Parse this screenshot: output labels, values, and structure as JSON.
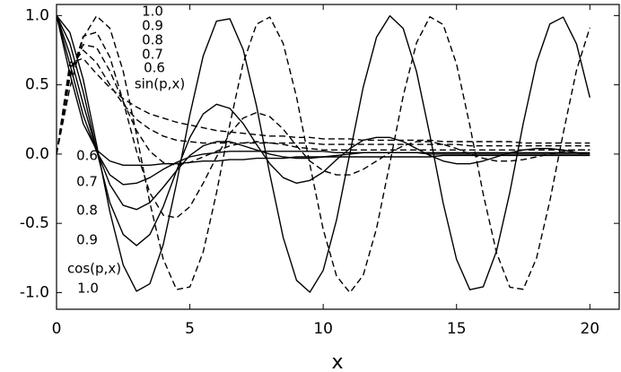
{
  "chart_data": {
    "type": "line",
    "xlabel": "x",
    "annotations": [
      "sin(p,x)",
      "cos(p,x)"
    ],
    "xlim": [
      0,
      21.1
    ],
    "ylim": [
      -1.12,
      1.08
    ],
    "xticks": [
      0,
      5,
      10,
      15,
      20
    ],
    "yticks": [
      {
        "value": -1,
        "label": "-1.0"
      },
      -0.5,
      {
        "value": 0,
        "label": "0.0"
      },
      0.5,
      {
        "value": 1,
        "label": "1.0"
      }
    ],
    "grid": false,
    "x": [
      0,
      0.5,
      1,
      1.5,
      2,
      2.5,
      3,
      3.5,
      4,
      4.5,
      5,
      5.5,
      6,
      6.5,
      7,
      7.5,
      8,
      8.5,
      9,
      9.5,
      10,
      10.5,
      11,
      11.5,
      12,
      12.5,
      13,
      13.5,
      14,
      14.5,
      15,
      15.5,
      16,
      16.5,
      17,
      17.5,
      18,
      18.5,
      19,
      19.5,
      20
    ],
    "series": [
      {
        "name": "1.0",
        "color": "#000000",
        "style": "solid",
        "values": [
          1,
          0.878,
          0.54,
          0.071,
          -0.416,
          -0.801,
          -0.99,
          -0.936,
          -0.654,
          -0.211,
          0.284,
          0.709,
          0.96,
          0.977,
          0.754,
          0.347,
          -0.146,
          -0.602,
          -0.911,
          -0.997,
          -0.839,
          -0.476,
          0.004,
          0.483,
          0.844,
          0.998,
          0.907,
          0.595,
          0.137,
          -0.355,
          -0.76,
          -0.979,
          -0.958,
          -0.7,
          -0.275,
          0.22,
          0.66,
          0.939,
          0.989,
          0.795,
          0.408
        ]
      },
      {
        "name": "0.9",
        "color": "#000000",
        "style": "solid",
        "values": [
          1,
          0.8,
          0.45,
          0.03,
          -0.35,
          -0.58,
          -0.66,
          -0.58,
          -0.38,
          -0.12,
          0.12,
          0.29,
          0.36,
          0.33,
          0.22,
          0.07,
          -0.07,
          -0.17,
          -0.21,
          -0.19,
          -0.13,
          -0.04,
          0.04,
          0.1,
          0.12,
          0.12,
          0.09,
          0.04,
          -0.01,
          -0.05,
          -0.07,
          -0.07,
          -0.05,
          -0.02,
          0.01,
          0.03,
          0.04,
          0.04,
          0.03,
          0.01,
          0.0
        ]
      },
      {
        "name": "0.8",
        "color": "#000000",
        "style": "solid",
        "values": [
          1,
          0.72,
          0.36,
          0.03,
          -0.22,
          -0.37,
          -0.4,
          -0.35,
          -0.24,
          -0.12,
          -0.01,
          0.06,
          0.09,
          0.09,
          0.06,
          0.03,
          0.0,
          -0.02,
          -0.03,
          -0.03,
          -0.02,
          -0.01,
          0.0,
          0.01,
          0.01,
          0.01,
          0.01,
          0.01,
          0.0,
          0.0,
          0.0,
          0.0,
          0.0,
          0.0,
          0.0,
          0.0,
          0.0,
          0.0,
          0.0,
          0.0,
          0.0
        ]
      },
      {
        "name": "0.7",
        "color": "#000000",
        "style": "solid",
        "values": [
          1,
          0.65,
          0.28,
          0.02,
          -0.15,
          -0.22,
          -0.21,
          -0.17,
          -0.11,
          -0.06,
          -0.02,
          0.0,
          0.01,
          0.02,
          0.02,
          0.02,
          0.02,
          0.02,
          0.02,
          0.02,
          0.02,
          0.01,
          0.01,
          0.01,
          0.01,
          0.01,
          0.01,
          0.01,
          0.01,
          0.01,
          0.01,
          0.01,
          0.01,
          0.01,
          0.01,
          0.01,
          0.01,
          0.01,
          0.01,
          0.01,
          0.01
        ]
      },
      {
        "name": "0.6",
        "color": "#000000",
        "style": "solid",
        "values": [
          1,
          0.58,
          0.22,
          0.03,
          -0.05,
          -0.08,
          -0.08,
          -0.08,
          -0.07,
          -0.07,
          -0.06,
          -0.05,
          -0.05,
          -0.04,
          -0.04,
          -0.03,
          -0.03,
          -0.03,
          -0.02,
          -0.02,
          -0.02,
          -0.02,
          -0.02,
          -0.02,
          -0.02,
          -0.02,
          -0.02,
          -0.02,
          -0.02,
          -0.01,
          -0.01,
          -0.01,
          -0.01,
          -0.01,
          -0.01,
          -0.01,
          -0.01,
          -0.01,
          -0.01,
          -0.01,
          -0.01
        ]
      },
      {
        "name": "1.0",
        "color": "#000000",
        "style": "dashed",
        "values": [
          0,
          0.479,
          0.841,
          0.997,
          0.909,
          0.598,
          0.141,
          -0.351,
          -0.757,
          -0.978,
          -0.959,
          -0.706,
          -0.279,
          0.215,
          0.657,
          0.938,
          0.989,
          0.798,
          0.412,
          -0.075,
          -0.544,
          -0.88,
          -1.0,
          -0.875,
          -0.537,
          -0.066,
          0.42,
          0.804,
          0.991,
          0.935,
          0.65,
          0.206,
          -0.288,
          -0.712,
          -0.961,
          -0.976,
          -0.751,
          -0.338,
          0.15,
          0.606,
          0.913
        ]
      },
      {
        "name": "0.9",
        "color": "#000000",
        "style": "dashed",
        "values": [
          0,
          0.55,
          0.85,
          0.88,
          0.7,
          0.38,
          0.02,
          -0.28,
          -0.44,
          -0.46,
          -0.38,
          -0.21,
          -0.02,
          0.15,
          0.26,
          0.3,
          0.27,
          0.18,
          0.06,
          -0.05,
          -0.12,
          -0.15,
          -0.15,
          -0.11,
          -0.05,
          0.01,
          0.06,
          0.09,
          0.09,
          0.07,
          0.04,
          0.0,
          -0.03,
          -0.05,
          -0.05,
          -0.04,
          -0.02,
          0.0,
          0.02,
          0.03,
          0.03
        ]
      },
      {
        "name": "0.8",
        "color": "#000000",
        "style": "dashed",
        "values": [
          0,
          0.58,
          0.79,
          0.77,
          0.6,
          0.38,
          0.17,
          0.02,
          -0.06,
          -0.08,
          -0.06,
          -0.02,
          0.02,
          0.06,
          0.08,
          0.09,
          0.08,
          0.07,
          0.05,
          0.04,
          0.03,
          0.03,
          0.03,
          0.03,
          0.03,
          0.03,
          0.03,
          0.03,
          0.03,
          0.03,
          0.03,
          0.03,
          0.03,
          0.03,
          0.03,
          0.03,
          0.03,
          0.03,
          0.03,
          0.03,
          0.03
        ]
      },
      {
        "name": "0.7",
        "color": "#000000",
        "style": "dashed",
        "values": [
          0,
          0.62,
          0.75,
          0.66,
          0.5,
          0.36,
          0.25,
          0.18,
          0.13,
          0.1,
          0.09,
          0.08,
          0.08,
          0.08,
          0.08,
          0.08,
          0.08,
          0.08,
          0.08,
          0.08,
          0.07,
          0.07,
          0.07,
          0.07,
          0.07,
          0.07,
          0.07,
          0.07,
          0.07,
          0.07,
          0.07,
          0.06,
          0.06,
          0.06,
          0.06,
          0.06,
          0.06,
          0.06,
          0.06,
          0.06,
          0.06
        ]
      },
      {
        "name": "0.6",
        "color": "#000000",
        "style": "dashed",
        "values": [
          0,
          0.66,
          0.69,
          0.58,
          0.48,
          0.4,
          0.34,
          0.29,
          0.26,
          0.23,
          0.21,
          0.19,
          0.17,
          0.16,
          0.15,
          0.14,
          0.13,
          0.13,
          0.12,
          0.12,
          0.11,
          0.11,
          0.11,
          0.1,
          0.1,
          0.1,
          0.1,
          0.1,
          0.1,
          0.09,
          0.09,
          0.09,
          0.09,
          0.09,
          0.09,
          0.08,
          0.08,
          0.08,
          0.08,
          0.08,
          0.08
        ]
      }
    ]
  }
}
